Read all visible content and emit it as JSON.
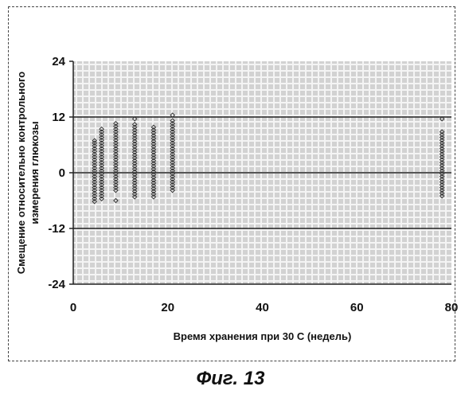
{
  "caption": "Фиг. 13",
  "chart_data": {
    "type": "scatter",
    "xlabel": "Время хранения при 30 C (недель)",
    "ylabel_lines": [
      "Смещение относительно контрольного",
      "измерения глюкозы"
    ],
    "xlim": [
      0,
      80
    ],
    "ylim": [
      -24,
      24
    ],
    "x_ticks": [
      0,
      20,
      40,
      60,
      80
    ],
    "y_ticks": [
      24,
      12,
      0,
      -12,
      -24
    ],
    "reference_lines": [
      12,
      0,
      -12
    ],
    "grid": true,
    "marker": "diamond-open",
    "colors": {
      "plot_bg": "#d2d2d2",
      "grid": "#f4f4f4",
      "points": "#333333",
      "lines": "#222222"
    },
    "series": [
      {
        "x": 4.5,
        "y": [
          -6.2,
          -5.6,
          -5.0,
          -4.4,
          -3.8,
          -3.2,
          -2.6,
          -2.0,
          -1.4,
          -0.8,
          -0.2,
          0.4,
          1.0,
          1.6,
          2.2,
          2.8,
          3.4,
          4.0,
          4.6,
          5.2,
          5.8,
          6.4,
          6.9
        ]
      },
      {
        "x": 6.0,
        "y": [
          -5.6,
          -5.0,
          -4.4,
          -3.8,
          -3.2,
          -2.6,
          -2.0,
          -1.4,
          -0.8,
          -0.2,
          0.4,
          1.0,
          1.6,
          2.2,
          2.8,
          3.4,
          4.0,
          4.6,
          5.2,
          5.8,
          6.4,
          7.0,
          7.6,
          8.2,
          8.8,
          9.4
        ]
      },
      {
        "x": 9.0,
        "y": [
          -6.0,
          -3.8,
          -3.2,
          -2.6,
          -2.0,
          -1.4,
          -0.8,
          -0.2,
          0.4,
          1.0,
          1.6,
          2.2,
          2.8,
          3.4,
          4.0,
          4.6,
          5.2,
          5.8,
          6.4,
          7.0,
          7.6,
          8.2,
          8.8,
          9.4,
          10.0,
          10.6
        ]
      },
      {
        "x": 13.0,
        "y": [
          -5.2,
          -4.6,
          -4.0,
          -3.4,
          -2.8,
          -2.2,
          -1.6,
          -1.0,
          -0.4,
          0.2,
          0.8,
          1.4,
          2.0,
          2.6,
          3.2,
          3.8,
          4.4,
          5.0,
          5.6,
          6.2,
          6.8,
          7.4,
          8.0,
          8.6,
          9.2,
          9.8,
          10.4,
          11.6
        ]
      },
      {
        "x": 17.0,
        "y": [
          -5.2,
          -4.6,
          -4.0,
          -3.4,
          -2.8,
          -2.2,
          -1.6,
          -1.0,
          -0.4,
          0.2,
          0.8,
          1.4,
          2.0,
          2.6,
          3.2,
          3.8,
          4.4,
          5.0,
          5.6,
          6.2,
          6.8,
          7.4,
          8.0,
          8.6,
          9.2,
          9.8
        ]
      },
      {
        "x": 21.0,
        "y": [
          -3.8,
          -3.2,
          -2.6,
          -2.0,
          -1.4,
          -0.8,
          -0.2,
          0.4,
          1.0,
          1.6,
          2.2,
          2.8,
          3.4,
          4.0,
          4.6,
          5.2,
          5.8,
          6.4,
          7.0,
          7.6,
          8.2,
          8.8,
          9.4,
          10.0,
          10.6,
          11.2,
          12.4
        ]
      },
      {
        "x": 78.0,
        "y": [
          -5.0,
          -4.4,
          -3.8,
          -3.2,
          -2.6,
          -2.0,
          -1.4,
          -0.8,
          -0.2,
          0.4,
          1.0,
          1.6,
          2.2,
          2.8,
          3.4,
          4.0,
          4.6,
          5.2,
          5.8,
          6.4,
          7.0,
          7.6,
          8.2,
          8.8,
          11.6
        ]
      }
    ]
  }
}
